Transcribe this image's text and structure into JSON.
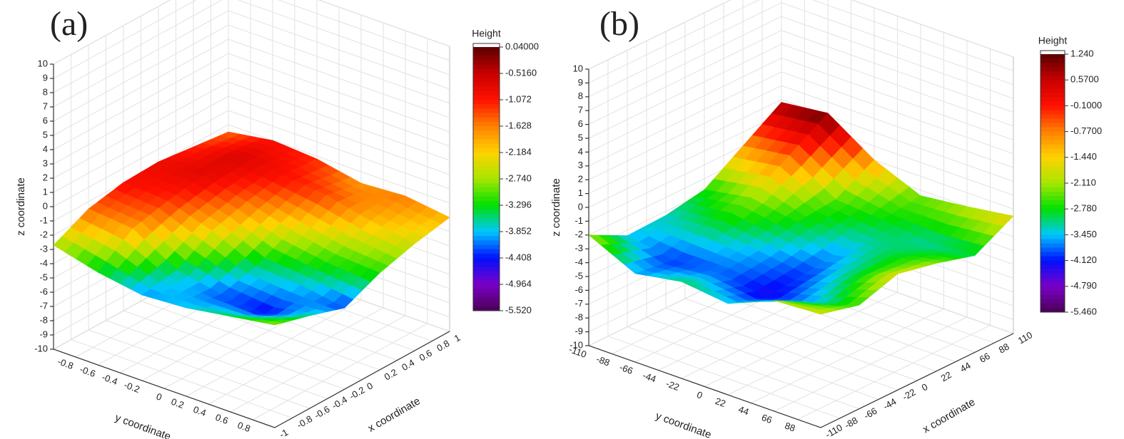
{
  "chart_data": [
    {
      "type": "surface",
      "panel_label": "(a)",
      "x_label": "x coordinate",
      "y_label": "y coordinate",
      "z_label": "z coordinate",
      "colorbar_title": "Height",
      "x": [
        -1,
        -0.6,
        -0.2,
        0.2,
        0.6,
        1
      ],
      "y": [
        -1,
        -0.6,
        -0.2,
        0.2,
        0.6,
        1
      ],
      "z": [
        [
          -2.7,
          -1.5,
          -1.0,
          -0.9,
          -1.2,
          -1.5
        ],
        [
          -3.5,
          -1.8,
          -1.2,
          -0.8,
          -0.7,
          -1.0
        ],
        [
          -4.0,
          -3.6,
          -2.2,
          -1.5,
          -1.0,
          -1.2
        ],
        [
          -3.8,
          -4.2,
          -3.6,
          -2.4,
          -1.3,
          -1.8
        ],
        [
          -3.3,
          -4.5,
          -3.8,
          -3.0,
          -2.0,
          -1.6
        ],
        [
          -2.8,
          -3.5,
          -4.3,
          -3.2,
          -2.5,
          -2.0
        ]
      ],
      "xlim": [
        -1,
        1
      ],
      "xticks": [
        -1,
        -0.8,
        -0.6,
        -0.4,
        -0.2,
        0,
        0.2,
        0.4,
        0.6,
        0.8,
        1
      ],
      "ylim": [
        -1,
        1
      ],
      "yticks": [
        -0.8,
        -0.6,
        -0.4,
        -0.2,
        0,
        0.2,
        0.4,
        0.6,
        0.8
      ],
      "zlim": [
        -10,
        10
      ],
      "zticks": [
        -10,
        -9,
        -8,
        -7,
        -6,
        -5,
        -4,
        -3,
        -2,
        -1,
        0,
        1,
        2,
        3,
        4,
        5,
        6,
        7,
        8,
        9,
        10
      ],
      "colorbar_ticks": [
        {
          "value": 0.04,
          "label": "0.04000"
        },
        {
          "value": -0.516,
          "label": "-0.5160"
        },
        {
          "value": -1.072,
          "label": "-1.072"
        },
        {
          "value": -1.628,
          "label": "-1.628"
        },
        {
          "value": -2.184,
          "label": "-2.184"
        },
        {
          "value": -2.74,
          "label": "-2.740"
        },
        {
          "value": -3.296,
          "label": "-3.296"
        },
        {
          "value": -3.852,
          "label": "-3.852"
        },
        {
          "value": -4.408,
          "label": "-4.408"
        },
        {
          "value": -4.964,
          "label": "-4.964"
        },
        {
          "value": -5.52,
          "label": "-5.520"
        }
      ],
      "colormap": [
        "#4b0055",
        "#7a00c8",
        "#0010ff",
        "#00c8ff",
        "#00e000",
        "#a8e600",
        "#ffd200",
        "#ff8000",
        "#ff1000",
        "#c80000",
        "#5a0000"
      ],
      "grid": true
    },
    {
      "type": "surface",
      "panel_label": "(b)",
      "x_label": "x coordinate",
      "y_label": "y coordinate",
      "z_label": "z coordinate",
      "colorbar_title": "Height",
      "x": [
        -110,
        -66,
        -22,
        22,
        66,
        110
      ],
      "y": [
        -110,
        -66,
        -22,
        22,
        66,
        110
      ],
      "z": [
        [
          -2.0,
          -3.4,
          -3.3,
          -2.8,
          -1.0,
          0.8
        ],
        [
          -3.6,
          -4.0,
          -3.0,
          -2.2,
          -0.5,
          1.2
        ],
        [
          -3.0,
          -3.8,
          -3.5,
          -2.8,
          -2.5,
          -1.0
        ],
        [
          -3.4,
          -4.3,
          -4.0,
          -3.5,
          -2.8,
          -2.4
        ],
        [
          -2.0,
          -3.5,
          -3.0,
          -2.9,
          -3.2,
          -2.0
        ],
        [
          -1.8,
          -2.5,
          -1.6,
          -2.2,
          -3.0,
          -1.5
        ]
      ],
      "xlim": [
        -110,
        110
      ],
      "xticks": [
        -110,
        -88,
        -66,
        -44,
        -22,
        0,
        22,
        44,
        66,
        88,
        110
      ],
      "ylim": [
        -110,
        110
      ],
      "yticks": [
        -110,
        -88,
        -66,
        -44,
        -22,
        0,
        22,
        44,
        66,
        88
      ],
      "zlim": [
        -10,
        10
      ],
      "zticks": [
        -10,
        -9,
        -8,
        -7,
        -6,
        -5,
        -4,
        -3,
        -2,
        -1,
        0,
        1,
        2,
        3,
        4,
        5,
        6,
        7,
        8,
        9,
        10
      ],
      "colorbar_ticks": [
        {
          "value": 1.24,
          "label": "1.240"
        },
        {
          "value": 0.57,
          "label": "0.5700"
        },
        {
          "value": -0.1,
          "label": "-0.1000"
        },
        {
          "value": -0.77,
          "label": "-0.7700"
        },
        {
          "value": -1.44,
          "label": "-1.440"
        },
        {
          "value": -2.11,
          "label": "-2.110"
        },
        {
          "value": -2.78,
          "label": "-2.780"
        },
        {
          "value": -3.45,
          "label": "-3.450"
        },
        {
          "value": -4.12,
          "label": "-4.120"
        },
        {
          "value": -4.79,
          "label": "-4.790"
        },
        {
          "value": -5.46,
          "label": "-5.460"
        }
      ],
      "colormap": [
        "#4b0055",
        "#7a00c8",
        "#0010ff",
        "#00c8ff",
        "#00e000",
        "#a8e600",
        "#ffd200",
        "#ff8000",
        "#ff1000",
        "#c80000",
        "#5a0000"
      ],
      "grid": true
    }
  ]
}
